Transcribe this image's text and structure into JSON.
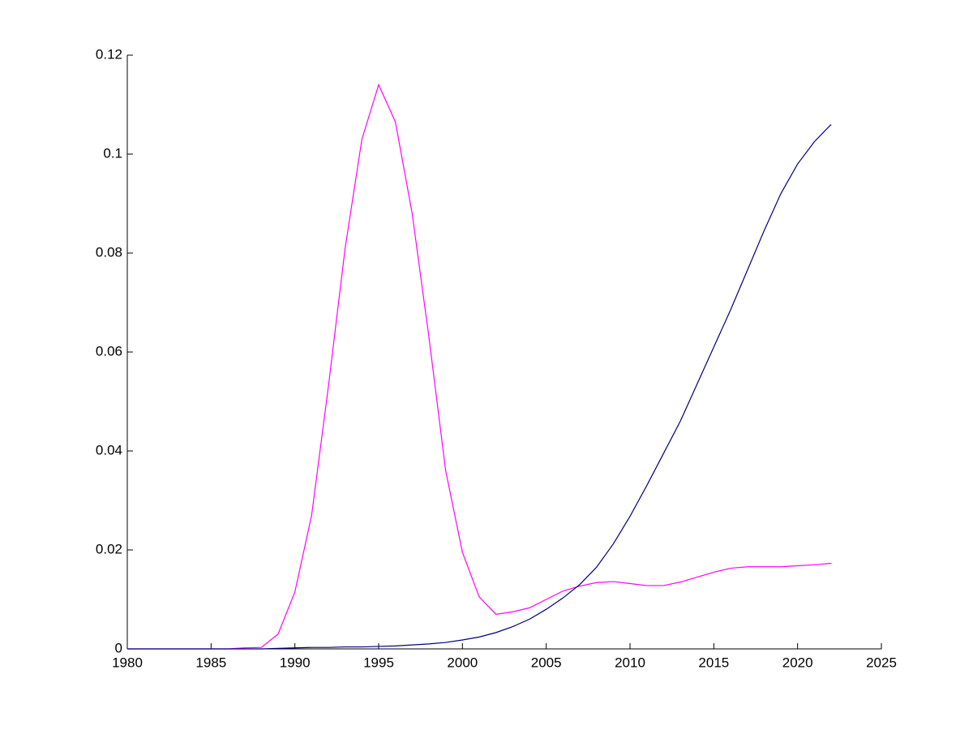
{
  "chart_data": {
    "type": "line",
    "x": [
      1980,
      1981,
      1982,
      1983,
      1984,
      1985,
      1986,
      1987,
      1988,
      1989,
      1990,
      1991,
      1992,
      1993,
      1994,
      1995,
      1996,
      1997,
      1998,
      1999,
      2000,
      2001,
      2002,
      2003,
      2004,
      2005,
      2006,
      2007,
      2008,
      2009,
      2010,
      2011,
      2012,
      2013,
      2014,
      2015,
      2016,
      2017,
      2018,
      2019,
      2020,
      2021,
      2022
    ],
    "series": [
      {
        "color": "#ff00ff",
        "values": [
          0,
          0,
          0,
          0,
          0,
          0,
          0,
          0.0002,
          0.0003,
          0.003,
          0.0115,
          0.027,
          0.053,
          0.081,
          0.103,
          0.114,
          0.1065,
          0.088,
          0.063,
          0.036,
          0.0195,
          0.0105,
          0.007,
          0.0075,
          0.0083,
          0.01,
          0.0117,
          0.0127,
          0.0134,
          0.0136,
          0.0132,
          0.0128,
          0.0128,
          0.0135,
          0.0145,
          0.0155,
          0.0163,
          0.0166,
          0.0166,
          0.0166,
          0.0168,
          0.017,
          0.0173
        ]
      },
      {
        "color": "#000080",
        "values": [
          0,
          0,
          0,
          0,
          0,
          0,
          0,
          0,
          0,
          0.0001,
          0.0002,
          0.0003,
          0.0003,
          0.0004,
          0.0004,
          0.0005,
          0.0006,
          0.0008,
          0.001,
          0.0013,
          0.0018,
          0.0024,
          0.0033,
          0.0045,
          0.006,
          0.008,
          0.0103,
          0.013,
          0.0165,
          0.0212,
          0.0268,
          0.033,
          0.0395,
          0.046,
          0.0535,
          0.061,
          0.0685,
          0.0765,
          0.0845,
          0.092,
          0.098,
          0.1025,
          0.106
        ]
      }
    ],
    "xlim": [
      1980,
      2025
    ],
    "xticks": [
      1980,
      1985,
      1990,
      1995,
      2000,
      2005,
      2010,
      2015,
      2020,
      2025
    ],
    "ylim": [
      0,
      0.12
    ],
    "yticks": [
      0,
      0.02,
      0.04,
      0.06,
      0.08,
      0.1,
      0.12
    ]
  }
}
